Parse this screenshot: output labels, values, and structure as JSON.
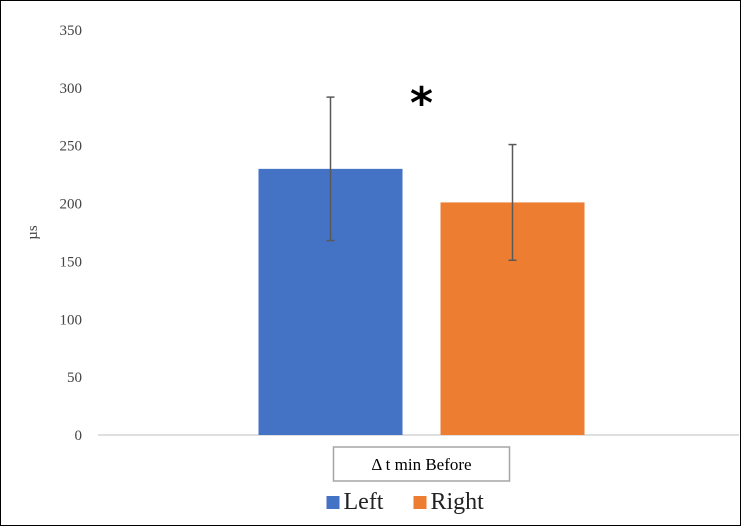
{
  "chart_data": {
    "type": "bar",
    "categories": [
      "Δ t min Before"
    ],
    "series": [
      {
        "name": "Left",
        "values": [
          230
        ],
        "error": [
          62
        ],
        "color": "#4472C4"
      },
      {
        "name": "Right",
        "values": [
          201
        ],
        "error": [
          50
        ],
        "color": "#ED7D31"
      }
    ],
    "title": "",
    "xlabel": "",
    "ylabel": "µs",
    "ylim": [
      0,
      350
    ],
    "yticks": [
      0,
      50,
      100,
      150,
      200,
      250,
      300,
      350
    ],
    "annotation": "*",
    "grid": false,
    "legend_position": "bottom"
  }
}
